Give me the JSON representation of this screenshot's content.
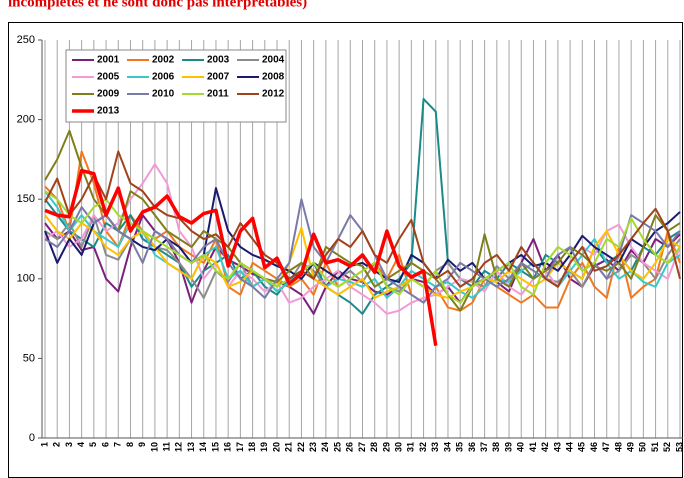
{
  "chart_data": {
    "type": "line",
    "title": "incomplètes et ne sont donc pas interprétables)",
    "categories": [
      "1",
      "2",
      "3",
      "4",
      "5",
      "6",
      "7",
      "8",
      "9",
      "10",
      "11",
      "12",
      "13",
      "14",
      "15",
      "16",
      "17",
      "18",
      "19",
      "20",
      "21",
      "22",
      "23",
      "24",
      "25",
      "26",
      "27",
      "28",
      "29",
      "30",
      "31",
      "32",
      "33",
      "34",
      "35",
      "36",
      "37",
      "38",
      "39",
      "40",
      "41",
      "42",
      "43",
      "44",
      "45",
      "46",
      "47",
      "48",
      "49",
      "50",
      "51",
      "52",
      "53"
    ],
    "ylim": [
      0,
      250
    ],
    "yticks": [
      0,
      50,
      100,
      150,
      200,
      250
    ],
    "grid": true,
    "series": [
      {
        "name": "2001",
        "color": "#7b1f7b",
        "values": [
          135,
          125,
          130,
          118,
          120,
          100,
          92,
          120,
          140,
          130,
          125,
          110,
          85,
          105,
          120,
          112,
          108,
          103,
          100,
          98,
          95,
          90,
          78,
          95,
          105,
          100,
          98,
          92,
          90,
          95,
          100,
          98,
          90,
          95,
          85,
          96,
          100,
          98,
          92,
          110,
          125,
          105,
          115,
          100,
          95,
          108,
          112,
          105,
          118,
          110,
          125,
          120,
          128
        ]
      },
      {
        "name": "2002",
        "color": "#f07820",
        "values": [
          158,
          150,
          130,
          180,
          160,
          130,
          120,
          140,
          130,
          125,
          130,
          120,
          115,
          110,
          125,
          95,
          90,
          110,
          105,
          100,
          95,
          100,
          90,
          110,
          95,
          100,
          105,
          110,
          100,
          115,
          90,
          85,
          95,
          82,
          80,
          85,
          100,
          95,
          90,
          85,
          90,
          82,
          82,
          100,
          110,
          95,
          88,
          120,
          88,
          95,
          100,
          130,
          110
        ]
      },
      {
        "name": "2003",
        "color": "#1a8a8a",
        "values": [
          150,
          140,
          130,
          125,
          120,
          135,
          130,
          140,
          125,
          120,
          115,
          110,
          95,
          105,
          110,
          115,
          100,
          105,
          95,
          90,
          100,
          105,
          110,
          95,
          90,
          85,
          78,
          90,
          95,
          100,
          110,
          213,
          205,
          110,
          100,
          95,
          105,
          100,
          110,
          105,
          100,
          115,
          110,
          105,
          100,
          120,
          110,
          115,
          105,
          120,
          115,
          125,
          130
        ]
      },
      {
        "name": "2004",
        "color": "#8c8c8c",
        "values": [
          130,
          125,
          135,
          120,
          140,
          115,
          112,
          125,
          130,
          120,
          118,
          110,
          100,
          88,
          105,
          98,
          110,
          95,
          100,
          92,
          98,
          110,
          105,
          95,
          100,
          105,
          98,
          110,
          95,
          92,
          100,
          95,
          105,
          110,
          100,
          98,
          95,
          108,
          100,
          105,
          110,
          100,
          98,
          105,
          95,
          110,
          100,
          105,
          115,
          110,
          100,
          115,
          125
        ]
      },
      {
        "name": "2005",
        "color": "#f29ad8",
        "values": [
          125,
          130,
          120,
          125,
          140,
          130,
          135,
          150,
          160,
          172,
          160,
          130,
          120,
          100,
          110,
          95,
          105,
          100,
          92,
          98,
          85,
          88,
          95,
          100,
          105,
          95,
          90,
          85,
          78,
          80,
          85,
          88,
          90,
          95,
          100,
          98,
          92,
          105,
          95,
          90,
          100,
          105,
          95,
          110,
          120,
          115,
          130,
          134,
          120,
          110,
          105,
          100,
          120
        ]
      },
      {
        "name": "2006",
        "color": "#3cc8c8",
        "values": [
          155,
          145,
          130,
          140,
          130,
          125,
          120,
          135,
          130,
          115,
          110,
          105,
          100,
          115,
          120,
          100,
          105,
          95,
          100,
          92,
          98,
          105,
          100,
          95,
          100,
          98,
          95,
          100,
          88,
          95,
          105,
          100,
          95,
          98,
          92,
          88,
          95,
          100,
          98,
          105,
          110,
          100,
          95,
          105,
          115,
          125,
          110,
          100,
          105,
          98,
          95,
          110,
          115
        ]
      },
      {
        "name": "2007",
        "color": "#ffc000",
        "values": [
          140,
          130,
          125,
          135,
          130,
          120,
          115,
          125,
          130,
          120,
          110,
          105,
          100,
          115,
          110,
          95,
          98,
          105,
          100,
          95,
          110,
          132,
          100,
          95,
          90,
          95,
          100,
          88,
          92,
          95,
          100,
          95,
          90,
          88,
          92,
          95,
          100,
          98,
          105,
          100,
          95,
          100,
          110,
          105,
          100,
          120,
          130,
          115,
          105,
          100,
          110,
          125,
          120
        ]
      },
      {
        "name": "2008",
        "color": "#1a1a6e",
        "values": [
          130,
          110,
          125,
          115,
          135,
          140,
          130,
          125,
          120,
          118,
          125,
          120,
          110,
          115,
          157,
          130,
          120,
          115,
          112,
          108,
          105,
          100,
          110,
          105,
          100,
          108,
          110,
          105,
          100,
          98,
          115,
          110,
          100,
          112,
          105,
          110,
          100,
          105,
          110,
          115,
          108,
          110,
          105,
          115,
          127,
          120,
          115,
          110,
          125,
          120,
          130,
          135,
          142
        ]
      },
      {
        "name": "2009",
        "color": "#7f7f1a",
        "values": [
          162,
          175,
          193,
          170,
          150,
          140,
          130,
          155,
          150,
          140,
          130,
          125,
          120,
          130,
          125,
          120,
          110,
          105,
          100,
          98,
          105,
          110,
          100,
          120,
          115,
          110,
          108,
          95,
          100,
          105,
          110,
          105,
          100,
          90,
          80,
          95,
          128,
          100,
          95,
          110,
          100,
          105,
          110,
          120,
          115,
          108,
          105,
          110,
          100,
          120,
          140,
          130,
          135
        ]
      },
      {
        "name": "2010",
        "color": "#7a7aaa",
        "values": [
          125,
          120,
          130,
          145,
          135,
          140,
          130,
          125,
          110,
          130,
          125,
          115,
          110,
          120,
          125,
          110,
          100,
          95,
          88,
          100,
          110,
          150,
          120,
          110,
          125,
          140,
          130,
          115,
          100,
          95,
          90,
          85,
          95,
          100,
          110,
          105,
          100,
          95,
          100,
          110,
          105,
          100,
          115,
          120,
          105,
          110,
          100,
          115,
          140,
          135,
          130,
          120,
          130
        ]
      },
      {
        "name": "2011",
        "color": "#a6d930",
        "values": [
          155,
          150,
          140,
          135,
          145,
          150,
          140,
          135,
          130,
          125,
          120,
          115,
          110,
          115,
          105,
          100,
          110,
          105,
          100,
          95,
          100,
          105,
          110,
          100,
          95,
          100,
          105,
          110,
          95,
          90,
          100,
          95,
          105,
          90,
          85,
          95,
          100,
          105,
          110,
          95,
          90,
          110,
          120,
          115,
          105,
          110,
          125,
          120,
          138,
          125,
          115,
          110,
          120
        ]
      },
      {
        "name": "2012",
        "color": "#a0421a",
        "values": [
          148,
          163,
          140,
          150,
          165,
          150,
          180,
          160,
          155,
          145,
          140,
          138,
          130,
          125,
          128,
          120,
          135,
          125,
          115,
          110,
          100,
          105,
          100,
          115,
          125,
          120,
          130,
          115,
          110,
          125,
          137,
          110,
          100,
          105,
          95,
          100,
          110,
          115,
          105,
          120,
          110,
          100,
          95,
          110,
          120,
          105,
          108,
          115,
          125,
          135,
          144,
          130,
          100
        ]
      },
      {
        "name": "2013",
        "color": "#ff0000",
        "values": [
          143,
          140,
          139,
          168,
          166,
          140,
          157,
          130,
          142,
          145,
          152,
          139,
          135,
          141,
          143,
          108,
          130,
          138,
          107,
          113,
          97,
          103,
          128,
          110,
          112,
          108,
          115,
          104,
          130,
          108,
          101,
          105,
          58,
          null,
          null,
          null,
          null,
          null,
          null,
          null,
          null,
          null,
          null,
          null,
          null,
          null,
          null,
          null,
          null,
          null,
          null,
          null,
          null
        ]
      }
    ]
  }
}
